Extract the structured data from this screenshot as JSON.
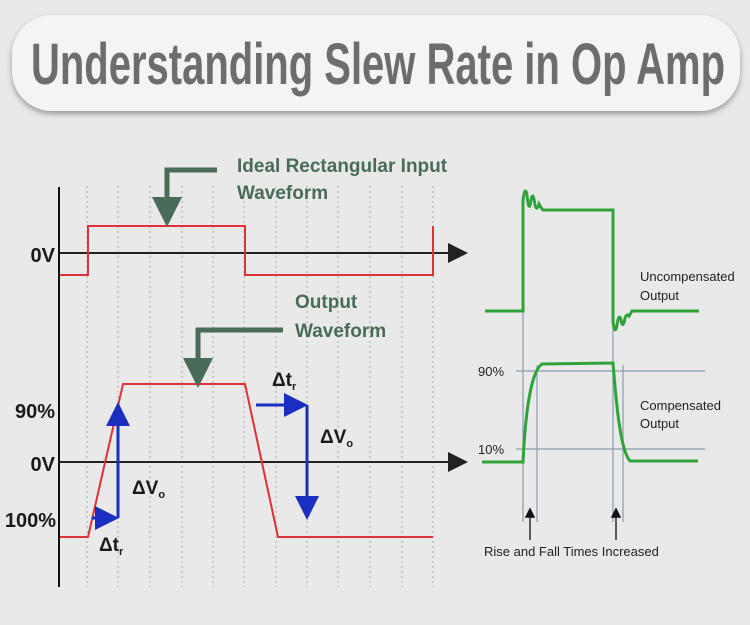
{
  "title": "Understanding Slew Rate in Op  Amp",
  "left_diagram": {
    "input_callout": [
      "Ideal Rectangular Input",
      "Waveform"
    ],
    "output_callout": [
      "Output",
      "Waveform"
    ],
    "axis_labels": {
      "top_zero": "0V",
      "ninety": "90%",
      "bottom_zero": "0V",
      "hundred": "100%"
    },
    "rise": {
      "dt": "Δt",
      "dt_sub": "r",
      "dv": "ΔV",
      "dv_sub": "o"
    },
    "fall": {
      "dt": "Δt",
      "dt_sub": "r",
      "dv": "ΔV",
      "dv_sub": "o"
    }
  },
  "right_diagram": {
    "uncompensated": [
      "Uncompensated",
      "Output"
    ],
    "compensated": [
      "Compensated",
      "Output"
    ],
    "level_90": "90%",
    "level_10": "10%",
    "caption": "Rise and Fall Times Increased"
  },
  "colors": {
    "input_wave": "#e0303a",
    "output_wave": "#e0303a",
    "delta_arrows": "#1a2fc0",
    "callout": "#4a6b57",
    "green_wave": "#2fa33a",
    "guide_lines": "#8a9ab0"
  }
}
